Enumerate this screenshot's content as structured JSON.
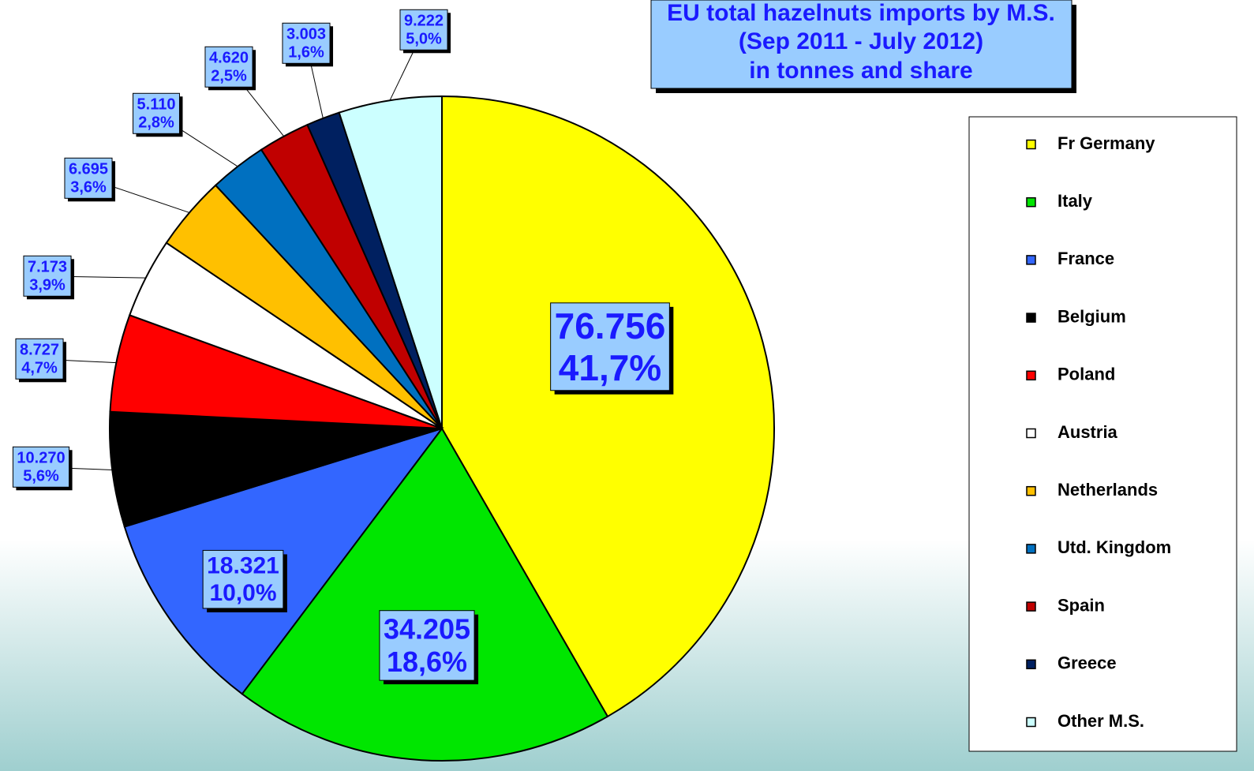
{
  "chart_data": {
    "type": "pie",
    "title": [
      "EU total hazelnuts imports by M.S.",
      "(Sep 2011 - July 2012)",
      "in tonnes and share"
    ],
    "categories": [
      "Fr Germany",
      "Italy",
      "France",
      "Belgium",
      "Poland",
      "Austria",
      "Netherlands",
      "Utd. Kingdom",
      "Spain",
      "Greece",
      "Other M.S."
    ],
    "values": [
      76756,
      34205,
      18321,
      10270,
      8727,
      7173,
      6695,
      5110,
      4620,
      3003,
      9222
    ],
    "value_labels": [
      "76.756",
      "34.205",
      "18.321",
      "10.270",
      "8.727",
      "7.173",
      "6.695",
      "5.110",
      "4.620",
      "3.003",
      "9.222"
    ],
    "shares": [
      41.7,
      18.6,
      10.0,
      5.6,
      4.7,
      3.9,
      3.6,
      2.8,
      2.5,
      1.6,
      5.0
    ],
    "share_labels": [
      "41,7%",
      "18,6%",
      "10,0%",
      "5,6%",
      "4,7%",
      "3,9%",
      "3,6%",
      "2,8%",
      "2,5%",
      "1,6%",
      "5,0%"
    ],
    "colors": [
      "#ffff00",
      "#00e600",
      "#3366ff",
      "#000000",
      "#ff0000",
      "#ffffff",
      "#ffc000",
      "#0070c0",
      "#c00000",
      "#002060",
      "#ccffff"
    ],
    "legend": "right"
  }
}
